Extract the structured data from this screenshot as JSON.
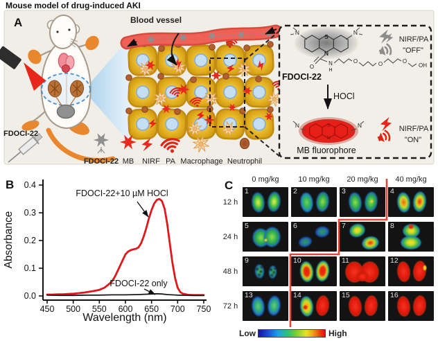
{
  "figure_title": "Mouse model of drug-induced AKI",
  "panel_a": {
    "label": "A",
    "blood_vessel_label": "Blood vessel",
    "injection_label": "FDOCI-22",
    "legend": {
      "probe": "FDOCI-22",
      "mb": "MB",
      "nirf": "NIRF",
      "pa": "PA",
      "macrophage": "Macrophage",
      "neutrophil": "Neutrophil"
    },
    "box": {
      "probe_name": "FDOCI-22",
      "off_label": "NIRF/PA",
      "off_state": "\"OFF\"",
      "trigger": "HOCl",
      "product_name": "MB fluorophore",
      "on_label": "NIRF/PA",
      "on_state": "\"ON\"",
      "atoms": {
        "s": "S",
        "n": "N",
        "o": "O",
        "h": "H",
        "oh": "OH"
      }
    }
  },
  "panel_b": {
    "label": "B"
  },
  "chart_data": {
    "type": "line",
    "title": "",
    "xlabel": "Wavelength (nm)",
    "ylabel": "Absorbance",
    "xlim": [
      450,
      750
    ],
    "ylim": [
      0.0,
      0.4
    ],
    "xticks": [
      "450",
      "500",
      "550",
      "600",
      "650",
      "700",
      "750"
    ],
    "yticks": [
      "0.0",
      "0.1",
      "0.2",
      "0.3",
      "0.4"
    ],
    "grid": false,
    "series": [
      {
        "name": "FDOCI-22+10 µM HOCl",
        "color": "#e0181b",
        "x": [
          450,
          460,
          470,
          480,
          490,
          500,
          510,
          520,
          530,
          540,
          550,
          560,
          570,
          575,
          580,
          585,
          590,
          595,
          600,
          605,
          610,
          615,
          620,
          625,
          630,
          635,
          640,
          645,
          650,
          655,
          660,
          665,
          670,
          675,
          680,
          685,
          690,
          695,
          700,
          705,
          710,
          720,
          730,
          740,
          750
        ],
        "y": [
          0.005,
          0.005,
          0.006,
          0.006,
          0.007,
          0.008,
          0.01,
          0.012,
          0.015,
          0.018,
          0.022,
          0.03,
          0.045,
          0.055,
          0.07,
          0.09,
          0.11,
          0.13,
          0.15,
          0.16,
          0.165,
          0.168,
          0.17,
          0.175,
          0.19,
          0.215,
          0.245,
          0.28,
          0.31,
          0.333,
          0.346,
          0.35,
          0.342,
          0.315,
          0.26,
          0.19,
          0.12,
          0.065,
          0.03,
          0.014,
          0.008,
          0.004,
          0.003,
          0.003,
          0.003
        ]
      },
      {
        "name": "FDOCI-22 only",
        "color": "#1a1a1a",
        "x": [
          450,
          475,
          500,
          525,
          550,
          575,
          600,
          625,
          650,
          660,
          670,
          680,
          700,
          725,
          750
        ],
        "y": [
          0.003,
          0.002,
          0.002,
          0.003,
          0.003,
          0.004,
          0.004,
          0.005,
          0.007,
          0.008,
          0.007,
          0.005,
          0.003,
          0.002,
          0.002
        ]
      }
    ],
    "legend_position": "annotations-on-plot"
  },
  "panel_c": {
    "label": "C",
    "doses": [
      "0 mg/kg",
      "10 mg/kg",
      "20 mg/kg",
      "40 mg/kg"
    ],
    "times": [
      "12 h",
      "24 h",
      "48 h",
      "72 h"
    ],
    "colorbar_low": "Low",
    "colorbar_high": "High",
    "threshold_color": "#e0473a",
    "cells": [
      {
        "n": "1",
        "pattern": "pair",
        "schemes": [
          "greenYellow",
          "greenYellow"
        ]
      },
      {
        "n": "2",
        "pattern": "pair",
        "schemes": [
          "greenCyan",
          "green"
        ]
      },
      {
        "n": "3",
        "pattern": "pair",
        "schemes": [
          "green",
          "green"
        ],
        "extras": [
          {
            "cls": "spot-yellow",
            "l": 44,
            "t": 18,
            "w": 5,
            "h": 5
          }
        ]
      },
      {
        "n": "4",
        "pattern": "pair",
        "schemes": [
          "orangeCore",
          "redOrangeCore"
        ]
      },
      {
        "n": "5",
        "pattern": "overlap",
        "schemes": [
          "green",
          "green"
        ],
        "extras": [
          {
            "cls": "spot-yellow",
            "l": 31,
            "t": 24,
            "w": 5,
            "h": 5
          }
        ]
      },
      {
        "n": "6",
        "pattern": "diagDim",
        "schemes": [
          "dimBlue",
          "dimBlue"
        ]
      },
      {
        "n": "7",
        "pattern": "diag",
        "schemes": [
          "yellowCore",
          "redCore"
        ]
      },
      {
        "n": "8",
        "pattern": "merged",
        "schemes": [
          "yellowCore",
          "yellowCore"
        ],
        "extras": [
          {
            "cls": "spot-red",
            "l": 29,
            "t": 3,
            "w": 8,
            "h": 8
          }
        ]
      },
      {
        "n": "9",
        "pattern": "smallPair",
        "schemes": [
          "speckle",
          "speckle"
        ]
      },
      {
        "n": "10",
        "pattern": "pair",
        "schemes": [
          "redCoreRim",
          "redCoreRim"
        ]
      },
      {
        "n": "11",
        "pattern": "mergedWide",
        "schemes": [
          "solidRed",
          "solidRed"
        ]
      },
      {
        "n": "12",
        "pattern": "pair",
        "schemes": [
          "solidRed",
          "solidRed"
        ],
        "extras": [
          {
            "cls": "spot-yellow",
            "l": 50,
            "t": 12,
            "w": 6,
            "h": 9
          }
        ]
      },
      {
        "n": "13",
        "pattern": "pair",
        "schemes": [
          "cyanGreen",
          "cyanGreen"
        ]
      },
      {
        "n": "14",
        "pattern": "pair",
        "schemes": [
          "orangeRim",
          "solidRed"
        ],
        "extras": [
          {
            "cls": "spot-red",
            "l": 17,
            "t": 20,
            "w": 7,
            "h": 7
          }
        ]
      },
      {
        "n": "15",
        "pattern": "pair",
        "schemes": [
          "solidRed",
          "solidRed"
        ]
      },
      {
        "n": "16",
        "pattern": "pair",
        "schemes": [
          "solidRed",
          "solidRed"
        ]
      }
    ]
  }
}
